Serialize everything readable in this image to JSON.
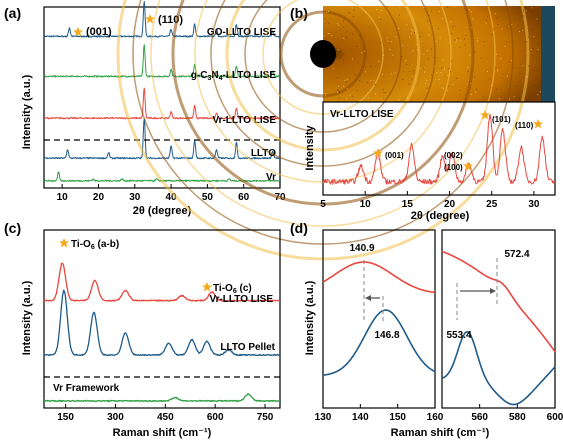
{
  "colors": {
    "blue": "#1f5b8a",
    "green": "#2ea043",
    "red": "#e8473f",
    "gray": "#6a6a6a",
    "star": "#f5a91c",
    "dark_teal": "#1b4a5e",
    "light_green": "#4db84a"
  },
  "chart_data": [
    {
      "panel": "(a)",
      "type": "line",
      "xlabel": "2θ (degree)",
      "ylabel": "Intensity (a.u.)",
      "xlim": [
        5,
        70
      ],
      "xticks": [
        "10",
        "20",
        "30",
        "40",
        "50",
        "60",
        "70"
      ],
      "annotations": [
        "(001)",
        "(110)"
      ],
      "series": [
        {
          "name": "GO-LLTO LISE",
          "color": "#1f5b8a",
          "baseline": 0.86,
          "peaks": [
            [
              12.0,
              0.05
            ],
            [
              32.6,
              0.2
            ],
            [
              40.0,
              0.04
            ],
            [
              46.5,
              0.07
            ],
            [
              52.5,
              0.04
            ],
            [
              58.0,
              0.07
            ],
            [
              68.0,
              0.03
            ]
          ]
        },
        {
          "name": "g-C3N4-LLTO LISE",
          "color": "#2ea043",
          "baseline": 0.63,
          "peaks": [
            [
              32.6,
              0.18
            ],
            [
              40.0,
              0.04
            ],
            [
              46.5,
              0.07
            ],
            [
              52.5,
              0.03
            ],
            [
              58.0,
              0.06
            ],
            [
              68.0,
              0.03
            ]
          ]
        },
        {
          "name": "Vr-LLTO LISE",
          "color": "#e8473f",
          "baseline": 0.39,
          "peaks": [
            [
              32.6,
              0.17
            ],
            [
              40.0,
              0.04
            ],
            [
              46.5,
              0.07
            ],
            [
              52.5,
              0.03
            ],
            [
              58.0,
              0.06
            ]
          ]
        },
        {
          "name": "LLTO",
          "color": "#1f5b8a",
          "baseline": 0.16,
          "peaks": [
            [
              11.5,
              0.05
            ],
            [
              22.8,
              0.03
            ],
            [
              32.6,
              0.23
            ],
            [
              40.0,
              0.07
            ],
            [
              46.5,
              0.1
            ],
            [
              52.5,
              0.05
            ],
            [
              58.0,
              0.09
            ],
            [
              68.0,
              0.04
            ]
          ]
        },
        {
          "name": "Vr",
          "color": "#2ea043",
          "baseline": 0.03,
          "peaks": [
            [
              9.0,
              0.05
            ],
            [
              18.5,
              0.01
            ],
            [
              26.5,
              0.01
            ],
            [
              36.0,
              0.01
            ],
            [
              56.0,
              0.01
            ]
          ]
        }
      ]
    },
    {
      "panel": "(b)",
      "type": "line",
      "xlabel": "2θ (degree)",
      "ylabel": "Intensity",
      "xlim": [
        5,
        32.5
      ],
      "xticks": [
        "5",
        "10",
        "15",
        "20",
        "25",
        "30"
      ],
      "label": "Vr-LLTO LISE",
      "annotations": [
        "(001)",
        "(002)",
        "(100)",
        "(101)",
        "(110)"
      ],
      "series": [
        {
          "name": "Vr-LLTO LISE",
          "color": "#e8473f",
          "baseline": 0.12,
          "peaks": [
            [
              9.5,
              0.18
            ],
            [
              11.5,
              0.32
            ],
            [
              15.5,
              0.42
            ],
            [
              19.2,
              0.3
            ],
            [
              20.3,
              0.33
            ],
            [
              22.3,
              0.2
            ],
            [
              24.8,
              0.78
            ],
            [
              26.3,
              0.6
            ],
            [
              28.5,
              0.4
            ],
            [
              31.0,
              0.52
            ]
          ]
        }
      ]
    },
    {
      "panel": "(c)",
      "type": "line",
      "xlabel": "Raman shift (cm⁻¹)",
      "ylabel": "Intensity (a.u.)",
      "xlim": [
        85,
        795
      ],
      "xticks": [
        "150",
        "300",
        "450",
        "600",
        "750"
      ],
      "annotations": [
        "Ti-O6 (a-b)",
        "Ti-O6 (c)"
      ],
      "series": [
        {
          "name": "Vr-LLTO LISE",
          "color": "#e8473f",
          "baseline": 0.62,
          "peaks": [
            [
              140,
              0.22
            ],
            [
              238,
              0.12
            ],
            [
              330,
              0.06
            ],
            [
              500,
              0.03
            ],
            [
              590,
              0.05
            ]
          ]
        },
        {
          "name": "LLTO Pellet",
          "color": "#1f5b8a",
          "baseline": 0.3,
          "peaks": [
            [
              145,
              0.38
            ],
            [
              235,
              0.25
            ],
            [
              330,
              0.13
            ],
            [
              460,
              0.07
            ],
            [
              530,
              0.09
            ],
            [
              575,
              0.08
            ],
            [
              640,
              0.03
            ]
          ]
        },
        {
          "name": "Vr Framework",
          "color": "#2ea043",
          "baseline": 0.03,
          "peaks": [
            [
              480,
              0.02
            ],
            [
              700,
              0.04
            ]
          ]
        }
      ]
    },
    {
      "panel": "(d)",
      "type": "line",
      "xlabel": "Raman shift (cm⁻¹)",
      "ylabel": "Intensity (a.u.)",
      "subplots": [
        {
          "xlim": [
            130,
            160
          ],
          "xticks": [
            "130",
            "140",
            "150",
            "160"
          ],
          "annotations": [
            "140.9",
            "146.8"
          ],
          "red_peak": 140.9,
          "blue_peak": 146.8
        },
        {
          "xlim": [
            540,
            600
          ],
          "xticks": [
            "560",
            "580",
            "600"
          ],
          "annotations": [
            "572.4",
            "553.4"
          ],
          "red_peak": 572.4,
          "blue_peak": 553.4
        }
      ]
    }
  ],
  "panels": {
    "a": {
      "label": "(a)",
      "xlabel": "2θ (degree)",
      "ylabel": "Intensity (a.u.)",
      "legend": [
        "GO-LLTO LISE",
        "g-C3N4-LLTO LISE",
        "Vr-LLTO LISE",
        "LLTO",
        "Vr"
      ],
      "peak1": "(001)",
      "peak2": "(110)"
    },
    "b": {
      "label": "(b)",
      "xlabel": "2θ (degree)",
      "ylabel": "Intensity",
      "title": "Vr-LLTO LISE",
      "peaks": [
        "(001)",
        "(002)",
        "(100)",
        "(101)",
        "(110)"
      ]
    },
    "c": {
      "label": "(c)",
      "xlabel": "Raman shift (cm⁻¹)",
      "ylabel": "Intensity (a.u.)",
      "legend": [
        "Vr-LLTO LISE",
        "LLTO Pellet",
        "Vr Framework"
      ],
      "mode1": "Ti-O6 (a-b)",
      "mode2": "Ti-O6 (c)"
    },
    "d": {
      "label": "(d)",
      "xlabel": "Raman shift (cm⁻¹)",
      "ylabel": "Intensity (a.u.)",
      "left_red": "140.9",
      "left_blue": "146.8",
      "right_red": "572.4",
      "right_blue": "553.4"
    }
  }
}
